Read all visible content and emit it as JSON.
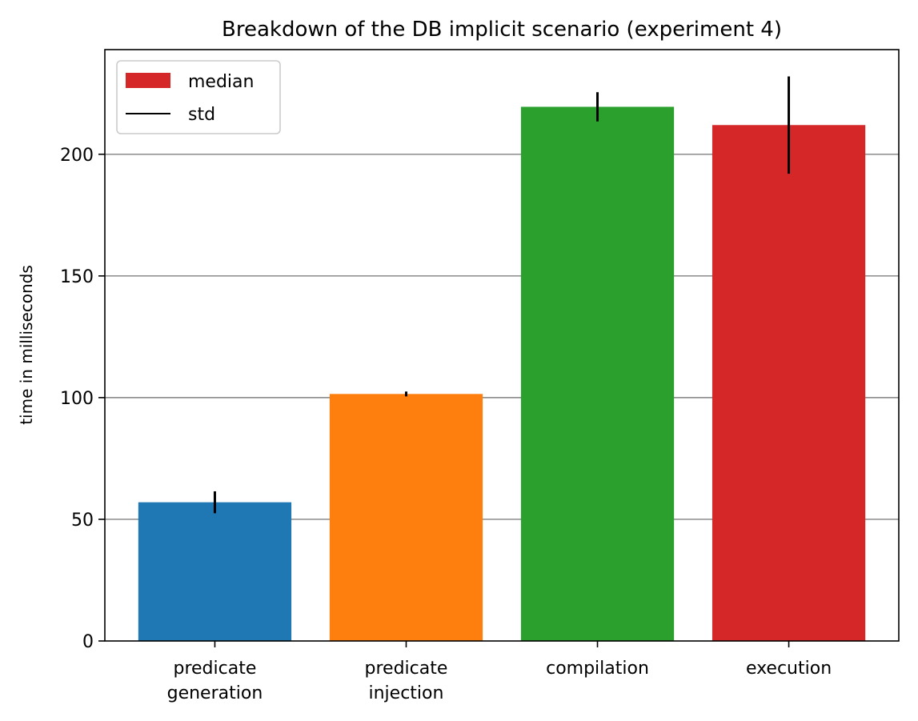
{
  "chart_data": {
    "type": "bar",
    "title": "Breakdown of the DB implicit scenario (experiment 4)",
    "xlabel": "",
    "ylabel": "time in milliseconds",
    "categories": [
      [
        "predicate",
        "generation"
      ],
      [
        "predicate",
        "injection"
      ],
      [
        "compilation"
      ],
      [
        "execution"
      ]
    ],
    "values": [
      57,
      101.5,
      219.5,
      212
    ],
    "std": [
      4.5,
      1,
      6,
      20
    ],
    "colors": [
      "#1f77b4",
      "#ff7f0e",
      "#2ca02c",
      "#d62728"
    ],
    "ylim": [
      0,
      243
    ],
    "yticks": [
      0,
      50,
      100,
      150,
      200
    ],
    "grid": "y",
    "legend": {
      "placement": "top-left",
      "entries": [
        {
          "label": "median",
          "kind": "patch",
          "color": "#d62728"
        },
        {
          "label": "std",
          "kind": "line",
          "color": "#000000"
        }
      ]
    }
  }
}
